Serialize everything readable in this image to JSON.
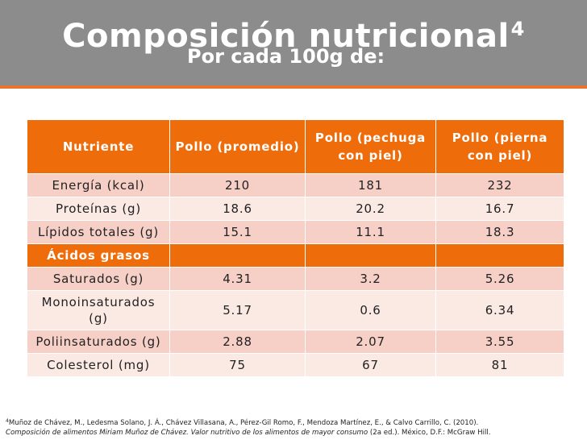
{
  "slide": {
    "title": "Composición nutricional",
    "title_superscript": "4",
    "subtitle": "Por cada 100g de:"
  },
  "table": {
    "headers": [
      "Nutriente",
      "Pollo (promedio)",
      "Pollo (pechuga con piel)",
      "Pollo (pierna con piel)"
    ],
    "rows": [
      [
        "Energía (kcal)",
        "210",
        "181",
        "232"
      ],
      [
        "Proteínas (g)",
        "18.6",
        "20.2",
        "16.7"
      ],
      [
        "Lípidos totales (g)",
        "15.1",
        "11.1",
        "18.3"
      ],
      [
        "Ácidos grasos",
        "",
        "",
        ""
      ],
      [
        "Saturados (g)",
        "4.31",
        "3.2",
        "5.26"
      ],
      [
        "Monoinsaturados (g)",
        "5.17",
        "0.6",
        "6.34"
      ],
      [
        "Poliinsaturados (g)",
        "2.88",
        "2.07",
        "3.55"
      ],
      [
        "Colesterol (mg)",
        "75",
        "67",
        "81"
      ]
    ]
  },
  "footnote": {
    "marker": "4",
    "line1": "Muñoz de Chávez, M., Ledesma Solano, J. Á., Chávez Villasana, A., Pérez-Gil Romo, F., Mendoza Martínez, E., & Calvo Carrillo, C. (2010).",
    "line2_italic": "Composición de alimentos Miriam Muñoz de Chávez. Valor nutritivo de los alimentos de mayor consumo",
    "line2_rest": " (2a ed.). México, D.F.: McGraw Hill."
  },
  "colors": {
    "header_band": "#8c8c8c",
    "accent_orange": "#ef6c0b",
    "row_dark": "#f6d0c7",
    "row_light": "#fbe9e4"
  }
}
